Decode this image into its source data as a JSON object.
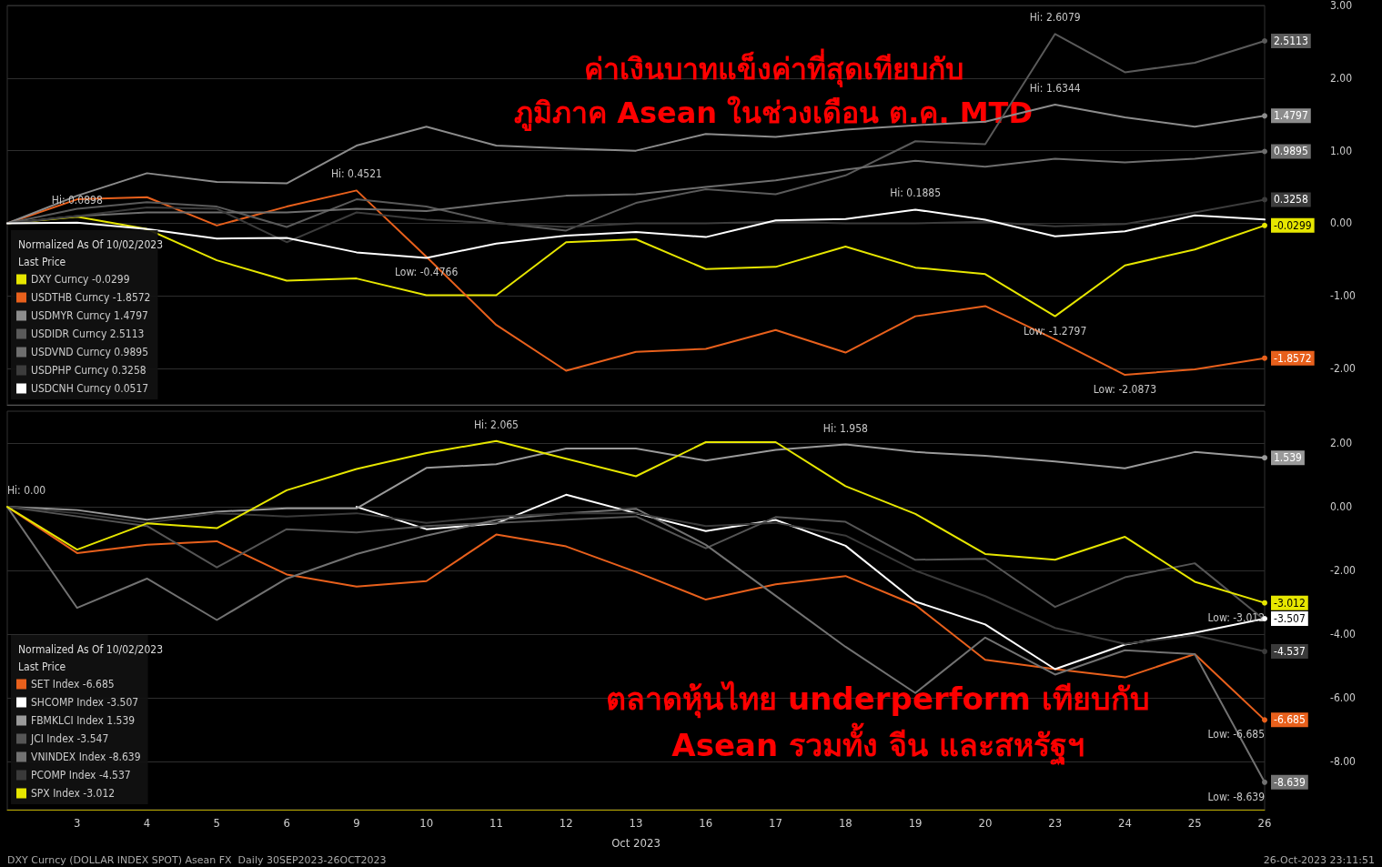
{
  "chart_data": [
    {
      "type": "line",
      "categories": [
        null,
        "3",
        "4",
        "5",
        "6",
        "9",
        "10",
        "11",
        "12",
        "13",
        "16",
        "17",
        "18",
        "19",
        "20",
        "23",
        "24",
        "25",
        "26"
      ],
      "ylim": [
        -2.5,
        3
      ],
      "yticks": [
        {
          "value": -2,
          "label": "-2.00"
        },
        {
          "value": -1,
          "label": "-1.00"
        },
        {
          "value": 0,
          "label": "0.00"
        },
        {
          "value": 1,
          "label": "1.00"
        },
        {
          "value": 2,
          "label": "2.00"
        },
        {
          "value": 3,
          "label": "3.00"
        }
      ],
      "grid": "y",
      "legend": "bottom left",
      "legend_title": "Normalized As Of 10/02/2023\nLast Price",
      "tick_labels": "y",
      "marker": "none",
      "line_style": "solid",
      "series": [
        {
          "name": "DXY Curncy -0.0299",
          "color": "#e6e600",
          "values": [
            0,
            0.0898,
            -0.08,
            -0.51,
            -0.79,
            -0.76,
            -0.99,
            -0.99,
            -0.26,
            -0.22,
            -0.63,
            -0.6,
            -0.32,
            -0.61,
            -0.7,
            -1.2797,
            -0.58,
            -0.36,
            -0.0299
          ],
          "value_labels": [
            null,
            null,
            null,
            null,
            null,
            null,
            null,
            null,
            null,
            null,
            null,
            null,
            null,
            null,
            null,
            null,
            null,
            null,
            "-0.0299"
          ]
        },
        {
          "name": "USDTHB Curncy -1.8572",
          "color": "#e8601c",
          "values": [
            0,
            0.33,
            0.36,
            -0.03,
            0.23,
            0.4521,
            -0.46,
            -1.4,
            -2.03,
            -1.77,
            -1.73,
            -1.47,
            -1.78,
            -1.28,
            -1.14,
            -1.6,
            -2.0873,
            -2.01,
            -1.8572
          ],
          "value_labels": [
            null,
            null,
            null,
            null,
            null,
            null,
            null,
            null,
            null,
            null,
            null,
            null,
            null,
            null,
            null,
            null,
            null,
            null,
            "-1.8572"
          ]
        },
        {
          "name": "USDMYR Curncy 1.4797",
          "color": "#8c8c8c",
          "values": [
            0,
            0.38,
            0.69,
            0.57,
            0.55,
            1.07,
            1.33,
            1.07,
            1.03,
            1.0,
            1.23,
            1.19,
            1.29,
            1.35,
            1.4,
            1.6344,
            1.46,
            1.33,
            1.4797
          ],
          "value_labels": [
            null,
            null,
            null,
            null,
            null,
            null,
            null,
            null,
            null,
            null,
            null,
            null,
            null,
            null,
            null,
            null,
            null,
            null,
            "1.4797"
          ]
        },
        {
          "name": "USDIDR Curncy 2.5113",
          "color": "#5a5a5a",
          "values": [
            0,
            0.2,
            0.29,
            0.23,
            -0.05,
            0.33,
            0.23,
            0.01,
            -0.1,
            0.28,
            0.47,
            0.4,
            0.66,
            1.13,
            1.09,
            2.6079,
            2.08,
            2.21,
            2.5113
          ],
          "value_labels": [
            null,
            null,
            null,
            null,
            null,
            null,
            null,
            null,
            null,
            null,
            null,
            null,
            null,
            null,
            null,
            null,
            null,
            null,
            "2.5113"
          ]
        },
        {
          "name": "USDVND Curncy 0.9895",
          "color": "#6e6e6e",
          "values": [
            0,
            0.1,
            0.15,
            0.15,
            0.15,
            0.2,
            0.17,
            0.28,
            0.38,
            0.4,
            0.5,
            0.59,
            0.74,
            0.86,
            0.78,
            0.89,
            0.84,
            0.89,
            0.9895
          ],
          "value_labels": [
            null,
            null,
            null,
            null,
            null,
            null,
            null,
            null,
            null,
            null,
            null,
            null,
            null,
            null,
            null,
            null,
            null,
            null,
            "0.9895"
          ]
        },
        {
          "name": "USDPHP Curncy 0.3258",
          "color": "#3c3c3c",
          "values": [
            0,
            0.1,
            0.22,
            0.2,
            -0.26,
            0.15,
            0.05,
            0.0,
            -0.05,
            0.0,
            0.0,
            0.02,
            0.0,
            0.0,
            0.02,
            -0.04,
            -0.01,
            0.15,
            0.3258
          ],
          "value_labels": [
            null,
            null,
            null,
            null,
            null,
            null,
            null,
            null,
            null,
            null,
            null,
            null,
            null,
            null,
            null,
            null,
            null,
            null,
            "0.3258"
          ]
        },
        {
          "name": "USDCNH Curncy 0.0517",
          "color": "#ffffff",
          "values": [
            0,
            0.01,
            -0.08,
            -0.21,
            -0.2,
            -0.4,
            -0.4766,
            -0.28,
            -0.17,
            -0.12,
            -0.19,
            0.04,
            0.06,
            0.1885,
            0.05,
            -0.18,
            -0.11,
            0.11,
            0.0517
          ]
        }
      ],
      "annotations": [
        "ค่าเงินบาทแข็งค่าที่สุดเทียบกับ\nภูมิภาค Asean ในช่วงเดือน ต.ค. MTD",
        {
          "text": "Hi: 0.0898",
          "x": "3",
          "y": 0.0898
        },
        {
          "text": "Hi: 0.4521",
          "x": "9",
          "y": 0.4521
        },
        {
          "text": "Low: -0.4766",
          "x": "10",
          "y": -0.4766
        },
        {
          "text": "Hi: 0.1885",
          "x": "19",
          "y": 0.1885
        },
        {
          "text": "Hi: 2.6079",
          "x": "23",
          "y": 2.6079
        },
        {
          "text": "Hi: 1.6344",
          "x": "23",
          "y": 1.6344
        },
        {
          "text": "Low: -1.2797",
          "x": "23",
          "y": -1.2797
        },
        {
          "text": "Low: -2.0873",
          "x": "24",
          "y": -2.0873
        }
      ]
    },
    {
      "type": "line",
      "categories": [
        null,
        "3",
        "4",
        "5",
        "6",
        "9",
        "10",
        "11",
        "12",
        "13",
        "16",
        "17",
        "18",
        "19",
        "20",
        "23",
        "24",
        "25",
        "26"
      ],
      "xlabel": "Oct 2023",
      "ylim": [
        -9.5,
        3
      ],
      "yticks": [
        {
          "value": -8,
          "label": "-8.00"
        },
        {
          "value": -6,
          "label": "-6.00"
        },
        {
          "value": -4,
          "label": "-4.00"
        },
        {
          "value": -2,
          "label": "-2.00"
        },
        {
          "value": 0,
          "label": "0.00"
        },
        {
          "value": 2,
          "label": "2.00"
        }
      ],
      "grid": "y",
      "legend": "bottom left",
      "legend_title": "Normalized As Of 10/02/2023\nLast Price",
      "marker": "none",
      "line_style": "solid",
      "series": [
        {
          "name": "SET Index -6.685",
          "color": "#e8601c",
          "values": [
            0,
            -1.45,
            -1.19,
            -1.08,
            -2.12,
            -2.5,
            -2.33,
            -0.87,
            -1.24,
            -2.04,
            -2.91,
            -2.43,
            -2.17,
            -3.08,
            -4.8,
            -5.09,
            -5.35,
            -4.62,
            -6.685
          ],
          "value_labels": [
            null,
            null,
            null,
            null,
            null,
            null,
            null,
            null,
            null,
            null,
            null,
            null,
            null,
            null,
            null,
            null,
            null,
            null,
            "-6.685"
          ]
        },
        {
          "name": "SHCOMP Index -3.507",
          "color": "#ffffff",
          "values": [
            null,
            null,
            null,
            null,
            null,
            0,
            -0.7,
            -0.52,
            0.38,
            -0.2,
            -0.76,
            -0.41,
            -1.22,
            -2.97,
            -3.69,
            -5.09,
            -4.32,
            -3.95,
            -3.507
          ],
          "value_labels": [
            null,
            null,
            null,
            null,
            null,
            null,
            null,
            null,
            null,
            null,
            null,
            null,
            null,
            null,
            null,
            null,
            null,
            null,
            "-3.507"
          ]
        },
        {
          "name": "FBMKLCI Index 1.539",
          "color": "#9a9a9a",
          "values": [
            0,
            -0.1,
            -0.4,
            -0.15,
            -0.05,
            -0.05,
            1.22,
            1.34,
            1.83,
            1.83,
            1.45,
            1.79,
            1.958,
            1.72,
            1.6,
            1.42,
            1.21,
            1.72,
            1.539
          ],
          "value_labels": [
            null,
            null,
            null,
            null,
            null,
            null,
            null,
            null,
            null,
            null,
            null,
            null,
            null,
            null,
            null,
            null,
            null,
            null,
            "1.539"
          ]
        },
        {
          "name": "JCI Index -3.547",
          "color": "#555555",
          "values": [
            0,
            -0.3,
            -0.6,
            -1.9,
            -0.7,
            -0.8,
            -0.6,
            -0.5,
            -0.4,
            -0.3,
            -1.3,
            -0.32,
            -0.47,
            -1.66,
            -1.63,
            -3.14,
            -2.21,
            -1.77,
            -3.547
          ]
        },
        {
          "name": "VNINDEX Index -8.639",
          "color": "#727272",
          "values": [
            0,
            -3.17,
            -2.25,
            -3.55,
            -2.25,
            -1.48,
            -0.9,
            -0.41,
            -0.2,
            -0.06,
            -1.19,
            -2.79,
            -4.39,
            -5.84,
            -4.1,
            -5.26,
            -4.5,
            -4.62,
            -8.639
          ],
          "value_labels": [
            null,
            null,
            null,
            null,
            null,
            null,
            null,
            null,
            null,
            null,
            null,
            null,
            null,
            null,
            null,
            null,
            null,
            null,
            "-8.639"
          ]
        },
        {
          "name": "PCOMP Index -4.537",
          "color": "#3a3a3a",
          "values": [
            0,
            -0.2,
            -0.5,
            -0.2,
            -0.3,
            -0.2,
            -0.5,
            -0.3,
            -0.2,
            -0.2,
            -0.6,
            -0.5,
            -0.9,
            -2.0,
            -2.8,
            -3.8,
            -4.3,
            -4.03,
            -4.537
          ],
          "value_labels": [
            null,
            null,
            null,
            null,
            null,
            null,
            null,
            null,
            null,
            null,
            null,
            null,
            null,
            null,
            null,
            null,
            null,
            null,
            "-4.537"
          ]
        },
        {
          "name": "SPX Index -3.012",
          "color": "#e6e600",
          "values": [
            0,
            -1.34,
            -0.52,
            -0.67,
            0.52,
            1.19,
            1.69,
            2.065,
            1.51,
            0.96,
            2.03,
            2.03,
            0.65,
            -0.22,
            -1.48,
            -1.66,
            -0.94,
            -2.35,
            -3.012
          ],
          "value_labels": [
            null,
            null,
            null,
            null,
            null,
            null,
            null,
            null,
            null,
            null,
            null,
            null,
            null,
            null,
            null,
            null,
            null,
            null,
            "-3.012"
          ]
        }
      ],
      "annotations": [
        "ตลาดหุ้นไทย underperform เทียบกับ\nAsean รวมทั้ง จีน และสหรัฐฯ",
        "DXY Curncy (DOLLAR INDEX SPOT) Asean FX  Daily 30SEP2023-26OCT2023",
        "26-Oct-2023 23:11:51",
        {
          "text": "Hi: 0.00",
          "y": 0
        },
        {
          "text": "Hi: 2.065",
          "x": "11",
          "y": 2.065
        },
        {
          "text": "Hi: 1.958",
          "x": "18",
          "y": 1.958
        },
        {
          "text": "Low: -3.012",
          "x": "26",
          "y": -3.012
        },
        {
          "text": "Low: -6.685",
          "x": "26",
          "y": -6.685
        },
        {
          "text": "Low: -8.639",
          "x": "26",
          "y": -8.639
        }
      ]
    }
  ]
}
